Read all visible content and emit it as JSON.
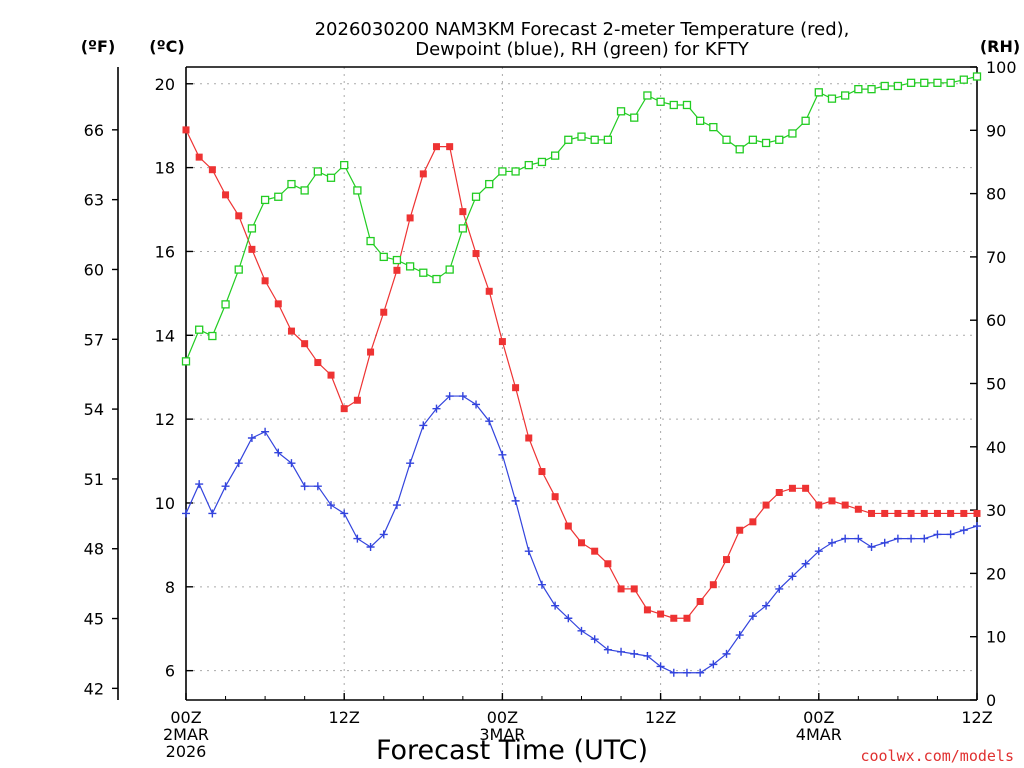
{
  "chart_data": {
    "type": "line",
    "title_line1": "2026030200 NAM3KM Forecast 2-meter Temperature (red),",
    "title_line2": "Dewpoint (blue), RH (green) for KFTY",
    "xlabel": "Forecast Time (UTC)",
    "credit": "coolwx.com/models",
    "left_unit_f": "(ºF)",
    "left_unit_c": "(ºC)",
    "right_unit": "(RH)",
    "x_ticks": [
      {
        "hour": 0,
        "line1": "00Z",
        "line2": "2MAR",
        "line3": "2026"
      },
      {
        "hour": 12,
        "line1": "12Z",
        "line2": "",
        "line3": ""
      },
      {
        "hour": 24,
        "line1": "00Z",
        "line2": "3MAR",
        "line3": ""
      },
      {
        "hour": 36,
        "line1": "12Z",
        "line2": "",
        "line3": ""
      },
      {
        "hour": 48,
        "line1": "00Z",
        "line2": "4MAR",
        "line3": ""
      },
      {
        "hour": 60,
        "line1": "12Z",
        "line2": "",
        "line3": ""
      }
    ],
    "xlim": [
      0,
      60
    ],
    "ylim_c": [
      5.3,
      20.4
    ],
    "ylim_f": [
      41.5,
      68.7
    ],
    "ylim_rh": [
      0,
      100
    ],
    "y_ticks_c": [
      "6",
      "8",
      "10",
      "12",
      "14",
      "16",
      "18",
      "20"
    ],
    "y_ticks_f": [
      "42",
      "45",
      "48",
      "51",
      "54",
      "57",
      "60",
      "63",
      "66"
    ],
    "y_ticks_rh": [
      "0",
      "10",
      "20",
      "30",
      "40",
      "50",
      "60",
      "70",
      "80",
      "90",
      "100"
    ],
    "series": [
      {
        "name": "Temperature (°C)",
        "color": "#ee3333",
        "marker": "filled-square",
        "axis": "c",
        "x": [
          0,
          1,
          2,
          3,
          4,
          5,
          6,
          7,
          8,
          9,
          10,
          11,
          12,
          13,
          14,
          15,
          16,
          17,
          18,
          19,
          20,
          21,
          22,
          23,
          24,
          25,
          26,
          27,
          28,
          29,
          30,
          31,
          32,
          33,
          34,
          35,
          36,
          37,
          38,
          39,
          40,
          41,
          42,
          43,
          44,
          45,
          46,
          47,
          48,
          49,
          50,
          51,
          52,
          53,
          54,
          55,
          56,
          57,
          58,
          59,
          60
        ],
        "values": [
          18.9,
          18.25,
          17.95,
          17.35,
          16.85,
          16.05,
          15.3,
          14.75,
          14.1,
          13.8,
          13.35,
          13.05,
          12.25,
          12.45,
          13.6,
          14.55,
          15.55,
          16.8,
          17.85,
          18.5,
          18.5,
          16.95,
          15.95,
          15.05,
          13.85,
          12.75,
          11.55,
          10.75,
          10.15,
          9.45,
          9.05,
          8.85,
          8.55,
          7.95,
          7.95,
          7.45,
          7.35,
          7.25,
          7.25,
          7.65,
          8.05,
          8.65,
          9.35,
          9.55,
          9.95,
          10.25,
          10.35,
          10.35,
          9.95,
          10.05,
          9.95,
          9.85,
          9.75,
          9.75,
          9.75,
          9.75,
          9.75,
          9.75,
          9.75,
          9.75,
          9.75
        ]
      },
      {
        "name": "Dewpoint (°C)",
        "color": "#3344dd",
        "marker": "plus",
        "axis": "c",
        "x": [
          0,
          1,
          2,
          3,
          4,
          5,
          6,
          7,
          8,
          9,
          10,
          11,
          12,
          13,
          14,
          15,
          16,
          17,
          18,
          19,
          20,
          21,
          22,
          23,
          24,
          25,
          26,
          27,
          28,
          29,
          30,
          31,
          32,
          33,
          34,
          35,
          36,
          37,
          38,
          39,
          40,
          41,
          42,
          43,
          44,
          45,
          46,
          47,
          48,
          49,
          50,
          51,
          52,
          53,
          54,
          55,
          56,
          57,
          58,
          59,
          60
        ],
        "values": [
          9.75,
          10.45,
          9.75,
          10.4,
          10.95,
          11.55,
          11.7,
          11.2,
          10.95,
          10.4,
          10.4,
          9.95,
          9.75,
          9.15,
          8.95,
          9.25,
          9.95,
          10.95,
          11.85,
          12.25,
          12.55,
          12.55,
          12.35,
          11.95,
          11.15,
          10.05,
          8.85,
          8.05,
          7.55,
          7.25,
          6.95,
          6.75,
          6.5,
          6.45,
          6.4,
          6.35,
          6.1,
          5.95,
          5.95,
          5.95,
          6.15,
          6.4,
          6.85,
          7.3,
          7.55,
          7.95,
          8.25,
          8.55,
          8.85,
          9.05,
          9.15,
          9.15,
          8.95,
          9.05,
          9.15,
          9.15,
          9.15,
          9.25,
          9.25,
          9.35,
          9.45
        ]
      },
      {
        "name": "RH (%)",
        "color": "#22cc22",
        "marker": "open-square",
        "axis": "rh",
        "x": [
          0,
          1,
          2,
          3,
          4,
          5,
          6,
          7,
          8,
          9,
          10,
          11,
          12,
          13,
          14,
          15,
          16,
          17,
          18,
          19,
          20,
          21,
          22,
          23,
          24,
          25,
          26,
          27,
          28,
          29,
          30,
          31,
          32,
          33,
          34,
          35,
          36,
          37,
          38,
          39,
          40,
          41,
          42,
          43,
          44,
          45,
          46,
          47,
          48,
          49,
          50,
          51,
          52,
          53,
          54,
          55,
          56,
          57,
          58,
          59,
          60
        ],
        "values": [
          53.5,
          58.5,
          57.5,
          62.5,
          68,
          74.5,
          79,
          79.5,
          81.5,
          80.5,
          83.5,
          82.5,
          84.5,
          80.5,
          72.5,
          70,
          69.5,
          68.5,
          67.5,
          66.5,
          68,
          74.5,
          79.5,
          81.5,
          83.5,
          83.5,
          84.5,
          85,
          86,
          88.5,
          89,
          88.5,
          88.5,
          93,
          92,
          95.5,
          94.5,
          94,
          94,
          91.5,
          90.5,
          88.5,
          87,
          88.5,
          88,
          88.5,
          89.5,
          91.5,
          96,
          95,
          95.5,
          96.5,
          96.5,
          97,
          97,
          97.5,
          97.5,
          97.5,
          97.5,
          98,
          98.5
        ]
      }
    ]
  }
}
